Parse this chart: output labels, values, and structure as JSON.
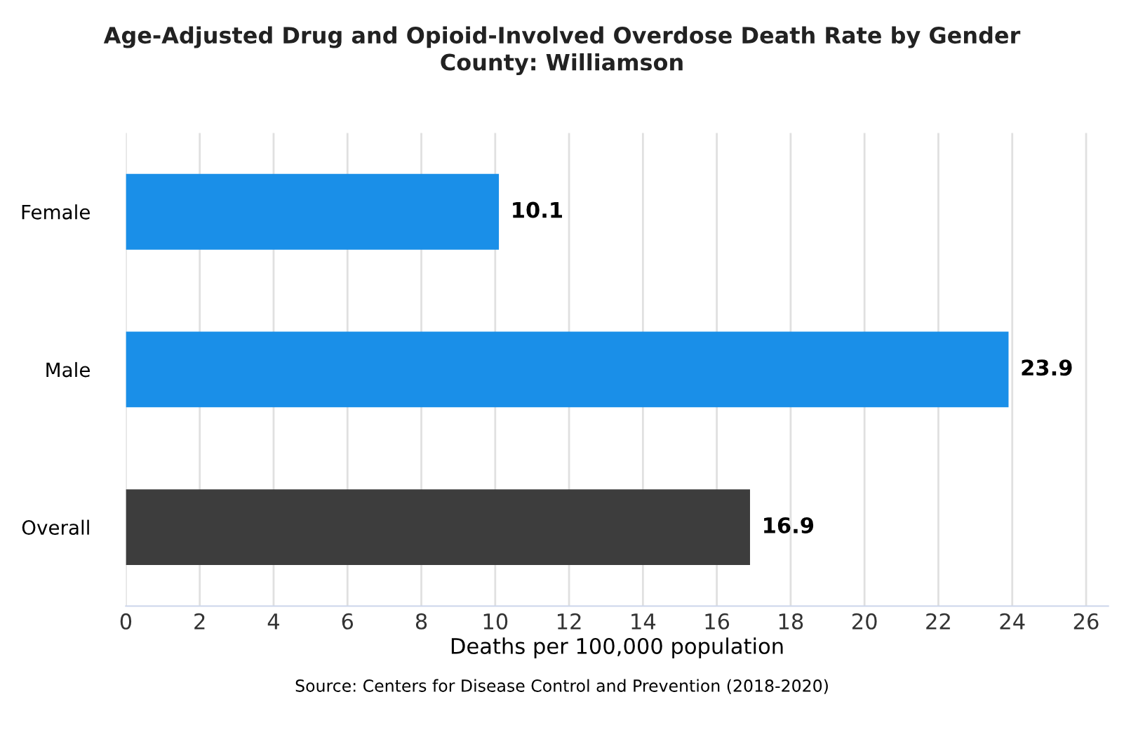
{
  "chart_data": {
    "type": "bar",
    "orientation": "horizontal",
    "title": "Age-Adjusted Drug and Opioid-Involved Overdose Death Rate by Gender\nCounty: Williamson",
    "xlabel": "Deaths per 100,000 population",
    "categories": [
      "Female",
      "Male",
      "Overall"
    ],
    "values": [
      10.1,
      23.9,
      16.9
    ],
    "colors": [
      "#1a8fe8",
      "#1a8fe8",
      "#3d3d3d"
    ],
    "xlim": [
      0,
      26.6
    ],
    "xticks": [
      0,
      2,
      4,
      6,
      8,
      10,
      12,
      14,
      16,
      18,
      20,
      22,
      24,
      26
    ],
    "grid": "x",
    "data_labels": true,
    "annotations": [
      "Source: Centers for Disease Control and Prevention (2018-2020)"
    ]
  }
}
